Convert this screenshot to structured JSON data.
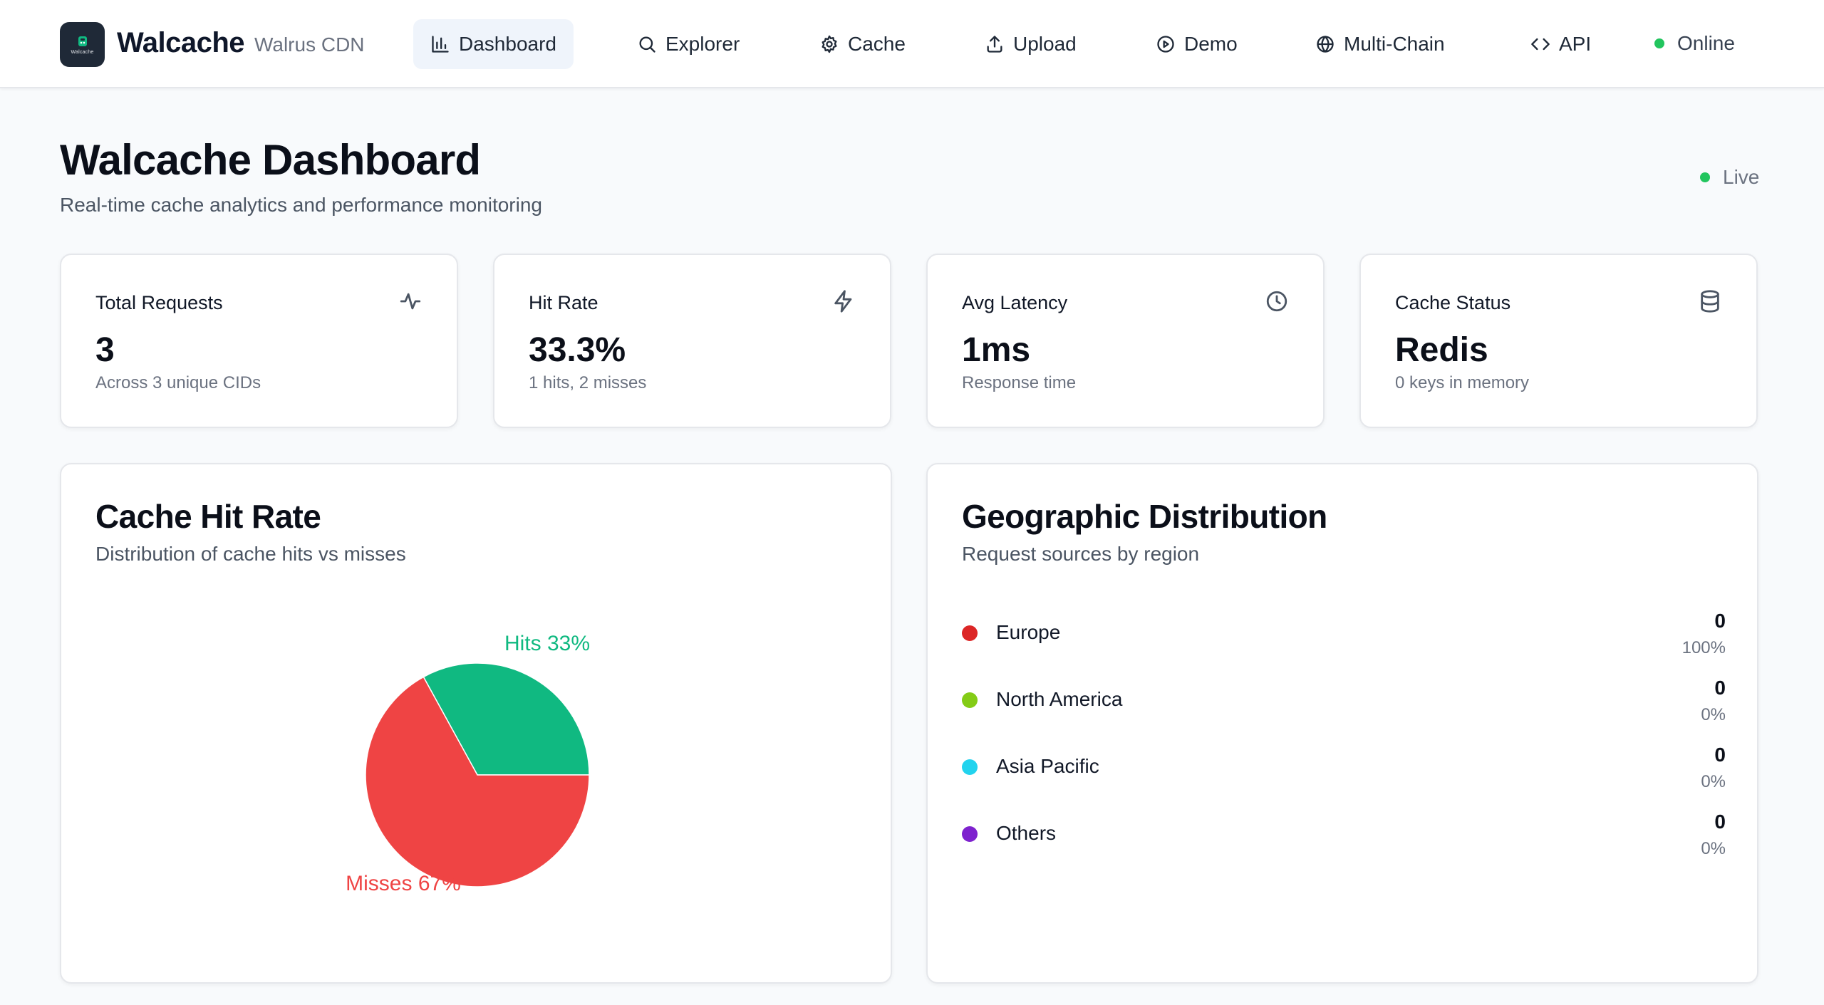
{
  "colors": {
    "accent": "#eff4fb",
    "online": "#22c55e",
    "hits": "#10b981",
    "misses": "#ef4444",
    "europe": "#dc2626",
    "north_america": "#84cc16",
    "asia_pacific": "#22d3ee",
    "others": "#7e22ce"
  },
  "nav": {
    "brand": "Walcache",
    "brand_sub": "Walrus CDN",
    "logo_text": "Walcache",
    "items": [
      {
        "label": "Dashboard",
        "icon": "bar-chart-icon"
      },
      {
        "label": "Explorer",
        "icon": "search-icon"
      },
      {
        "label": "Cache",
        "icon": "gear-icon"
      },
      {
        "label": "Upload",
        "icon": "upload-icon"
      },
      {
        "label": "Demo",
        "icon": "play-circle-icon"
      },
      {
        "label": "Multi-Chain",
        "icon": "globe-icon"
      },
      {
        "label": "API",
        "icon": "code-icon"
      }
    ],
    "status": "Online"
  },
  "header": {
    "title": "Walcache Dashboard",
    "subtitle": "Real-time cache analytics and performance monitoring",
    "live": "Live"
  },
  "stats": [
    {
      "label": "Total Requests",
      "value": "3",
      "note": "Across 3 unique CIDs",
      "icon": "activity-icon"
    },
    {
      "label": "Hit Rate",
      "value": "33.3%",
      "note": "1 hits, 2 misses",
      "icon": "lightning-icon"
    },
    {
      "label": "Avg Latency",
      "value": "1ms",
      "note": "Response time",
      "icon": "clock-icon"
    },
    {
      "label": "Cache Status",
      "value": "Redis",
      "note": "0 keys in memory",
      "icon": "database-icon"
    }
  ],
  "hit_rate_panel": {
    "title": "Cache Hit Rate",
    "subtitle": "Distribution of cache hits vs misses"
  },
  "chart_data": {
    "type": "pie",
    "categories": [
      "Hits",
      "Misses"
    ],
    "values": [
      33,
      67
    ],
    "labels": [
      "Hits 33%",
      "Misses 67%"
    ],
    "colors": [
      "#10b981",
      "#ef4444"
    ]
  },
  "geo_panel": {
    "title": "Geographic Distribution",
    "subtitle": "Request sources by region",
    "regions": [
      {
        "name": "Europe",
        "count": "0",
        "pct": "100%",
        "color": "#dc2626"
      },
      {
        "name": "North America",
        "count": "0",
        "pct": "0%",
        "color": "#84cc16"
      },
      {
        "name": "Asia Pacific",
        "count": "0",
        "pct": "0%",
        "color": "#22d3ee"
      },
      {
        "name": "Others",
        "count": "0",
        "pct": "0%",
        "color": "#7e22ce"
      }
    ]
  }
}
